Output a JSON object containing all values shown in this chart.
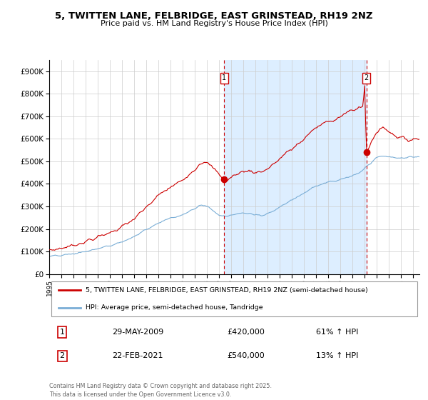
{
  "title": "5, TWITTEN LANE, FELBRIDGE, EAST GRINSTEAD, RH19 2NZ",
  "subtitle": "Price paid vs. HM Land Registry's House Price Index (HPI)",
  "legend_line1": "5, TWITTEN LANE, FELBRIDGE, EAST GRINSTEAD, RH19 2NZ (semi-detached house)",
  "legend_line2": "HPI: Average price, semi-detached house, Tandridge",
  "annotation1_label": "1",
  "annotation1_date": "29-MAY-2009",
  "annotation1_price": "£420,000",
  "annotation1_hpi": "61% ↑ HPI",
  "annotation2_label": "2",
  "annotation2_date": "22-FEB-2021",
  "annotation2_price": "£540,000",
  "annotation2_hpi": "13% ↑ HPI",
  "footer": "Contains HM Land Registry data © Crown copyright and database right 2025.\nThis data is licensed under the Open Government Licence v3.0.",
  "red_color": "#cc0000",
  "blue_color": "#7aaed6",
  "shade_color": "#ddeeff",
  "background_color": "#ffffff",
  "plot_bg_color": "#ffffff",
  "grid_color": "#cccccc",
  "annotation_line_color": "#cc0000",
  "xmin": 1995.0,
  "xmax": 2025.5,
  "ymin": 0,
  "ymax": 950000,
  "ann1_x": 2009.42,
  "ann1_y": 420000,
  "ann2_x": 2021.13,
  "ann2_y": 540000,
  "yticks": [
    0,
    100000,
    200000,
    300000,
    400000,
    500000,
    600000,
    700000,
    800000,
    900000
  ],
  "ytick_labels": [
    "£0",
    "£100K",
    "£200K",
    "£300K",
    "£400K",
    "£500K",
    "£600K",
    "£700K",
    "£800K",
    "£900K"
  ],
  "xticks": [
    1995,
    1996,
    1997,
    1998,
    1999,
    2000,
    2001,
    2002,
    2003,
    2004,
    2005,
    2006,
    2007,
    2008,
    2009,
    2010,
    2011,
    2012,
    2013,
    2014,
    2015,
    2016,
    2017,
    2018,
    2019,
    2020,
    2021,
    2022,
    2023,
    2024,
    2025
  ]
}
